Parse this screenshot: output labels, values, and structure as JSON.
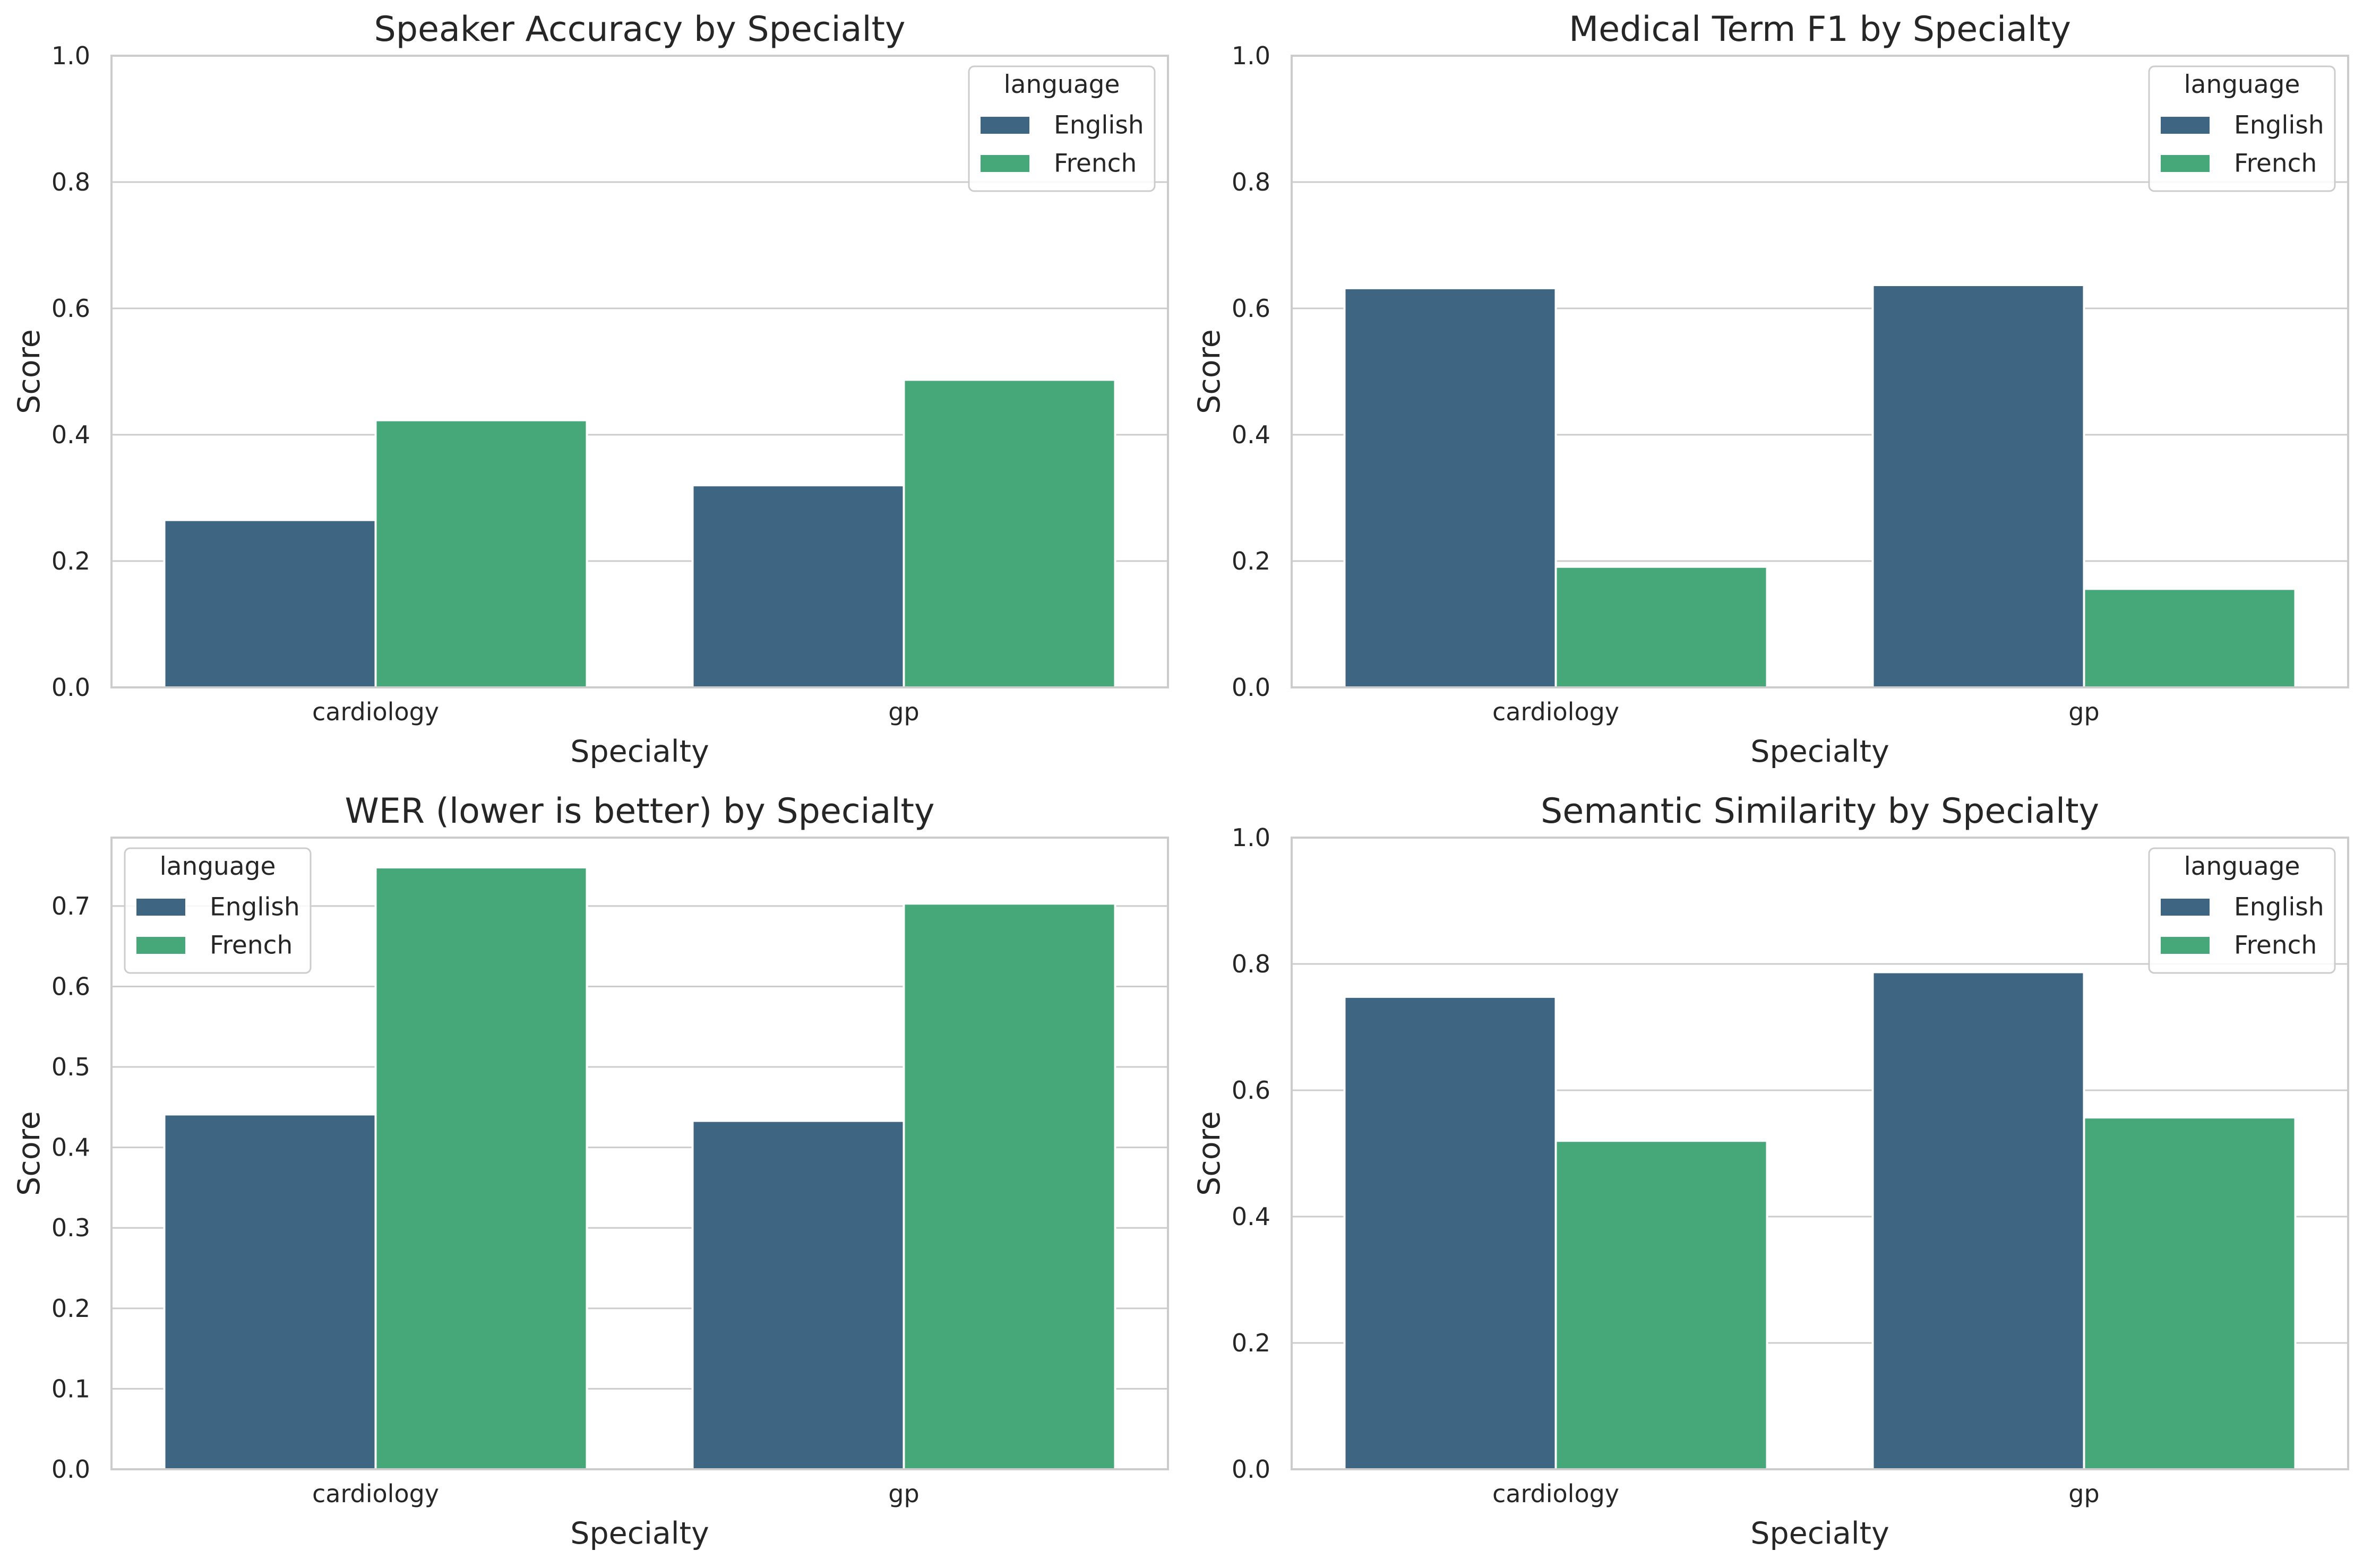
{
  "chart_data": [
    {
      "type": "bar",
      "title": "Speaker Accuracy by Specialty",
      "xlabel": "Specialty",
      "ylabel": "Score",
      "categories": [
        "cardiology",
        "gp"
      ],
      "series": [
        {
          "name": "English",
          "values": [
            0.265,
            0.32
          ]
        },
        {
          "name": "French",
          "values": [
            0.423,
            0.487
          ]
        }
      ],
      "ylim": [
        0,
        1.0
      ],
      "yticks": [
        "0.0",
        "0.2",
        "0.4",
        "0.6",
        "0.8",
        "1.0"
      ],
      "grid": true,
      "legend": {
        "title": "language",
        "placement": "top-right"
      }
    },
    {
      "type": "bar",
      "title": "Medical Term F1 by Specialty",
      "xlabel": "Specialty",
      "ylabel": "Score",
      "categories": [
        "cardiology",
        "gp"
      ],
      "series": [
        {
          "name": "English",
          "values": [
            0.632,
            0.637
          ]
        },
        {
          "name": "French",
          "values": [
            0.191,
            0.156
          ]
        }
      ],
      "ylim": [
        0,
        1.0
      ],
      "yticks": [
        "0.0",
        "0.2",
        "0.4",
        "0.6",
        "0.8",
        "1.0"
      ],
      "grid": true,
      "legend": {
        "title": "language",
        "placement": "top-right"
      }
    },
    {
      "type": "bar",
      "title": "WER (lower is better) by Specialty",
      "xlabel": "Specialty",
      "ylabel": "Score",
      "categories": [
        "cardiology",
        "gp"
      ],
      "series": [
        {
          "name": "English",
          "values": [
            0.441,
            0.433
          ]
        },
        {
          "name": "French",
          "values": [
            0.748,
            0.703
          ]
        }
      ],
      "ylim": [
        0,
        0.785
      ],
      "yticks": [
        "0.0",
        "0.1",
        "0.2",
        "0.3",
        "0.4",
        "0.5",
        "0.6",
        "0.7"
      ],
      "grid": true,
      "legend": {
        "title": "language",
        "placement": "top-left"
      }
    },
    {
      "type": "bar",
      "title": "Semantic Similarity by Specialty",
      "xlabel": "Specialty",
      "ylabel": "Score",
      "categories": [
        "cardiology",
        "gp"
      ],
      "series": [
        {
          "name": "English",
          "values": [
            0.748,
            0.787
          ]
        },
        {
          "name": "French",
          "values": [
            0.52,
            0.557
          ]
        }
      ],
      "ylim": [
        0,
        1.0
      ],
      "yticks": [
        "0.0",
        "0.2",
        "0.4",
        "0.6",
        "0.8",
        "1.0"
      ],
      "grid": true,
      "legend": {
        "title": "language",
        "placement": "top-right"
      }
    }
  ],
  "colors": {
    "english": "#3e6683",
    "french": "#46a879",
    "grid": "#cccccc",
    "spine": "#cccccc",
    "text": "#262626"
  }
}
